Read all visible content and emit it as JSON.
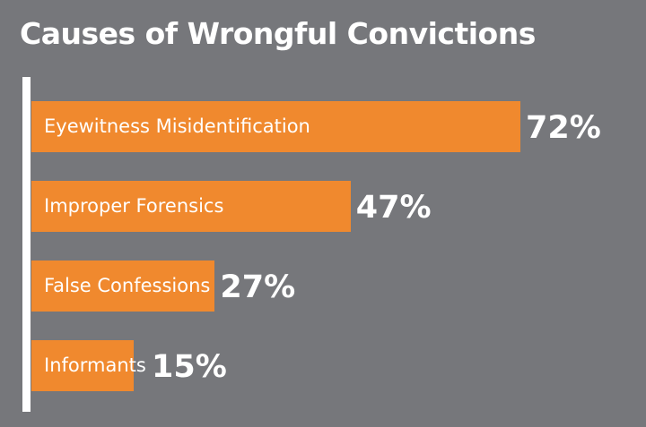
{
  "chart_data": {
    "type": "bar",
    "orientation": "horizontal",
    "title": "Causes of Wrongful Convictions",
    "categories": [
      "Eyewitness Misidentification",
      "Improper Forensics",
      "False Confessions",
      "Informants"
    ],
    "values": [
      72,
      47,
      27,
      15
    ],
    "value_labels": [
      "72%",
      "47%",
      "27%",
      "15%"
    ],
    "unit": "%",
    "xlim": [
      0,
      100
    ],
    "grid": false,
    "legend": "none",
    "colors": {
      "bar": "#f0892e",
      "background": "#76777b",
      "text": "#ffffff"
    }
  }
}
